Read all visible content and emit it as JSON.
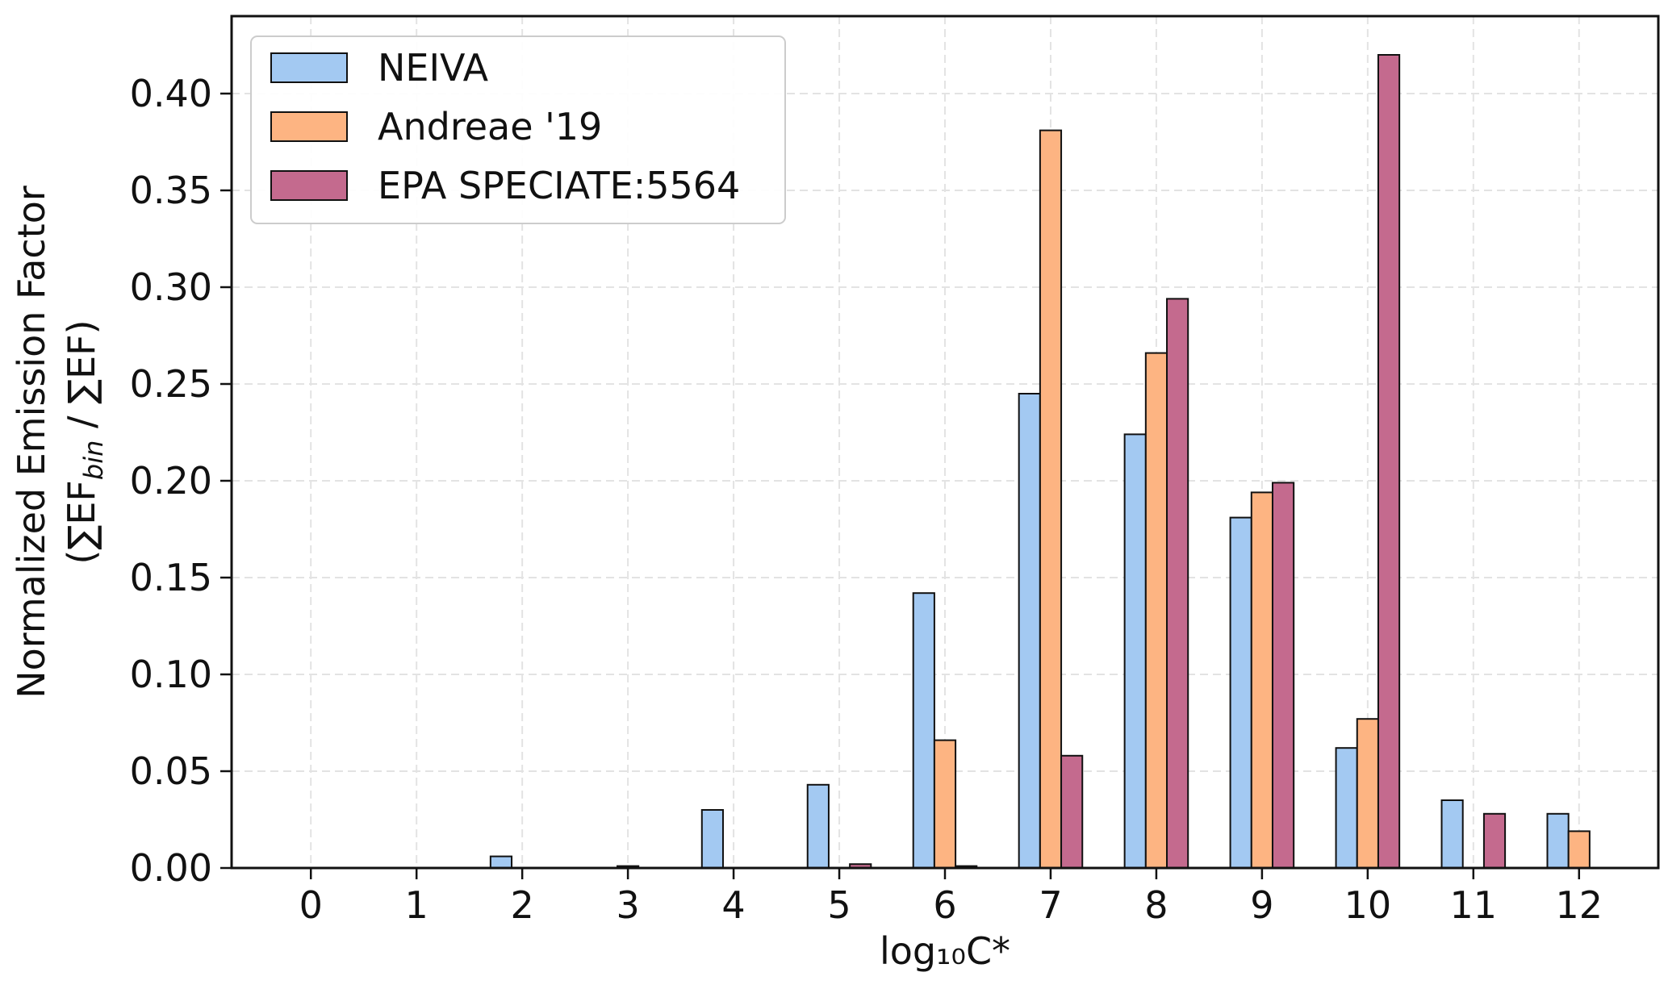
{
  "chart_data": {
    "type": "bar",
    "title": "",
    "xlabel": "log₁₀C*",
    "ylabel_line1": "Normalized Emission Factor",
    "ylabel_line2": "(∑EF",
    "ylabel_sub": "bin",
    "ylabel_line2_end": " / ∑EF)",
    "categories": [
      "0",
      "1",
      "2",
      "3",
      "4",
      "5",
      "6",
      "7",
      "8",
      "9",
      "10",
      "11",
      "12"
    ],
    "y_ticks": [
      "0.00",
      "0.05",
      "0.10",
      "0.15",
      "0.20",
      "0.25",
      "0.30",
      "0.35",
      "0.40"
    ],
    "ylim": [
      0,
      0.44
    ],
    "xlim": [
      -0.75,
      12.75
    ],
    "grid": true,
    "legend_position": "top-left",
    "series": [
      {
        "name": "NEIVA",
        "color": "#a3c9f2",
        "values": [
          0,
          0,
          0.006,
          0,
          0.03,
          0.043,
          0.142,
          0.245,
          0.224,
          0.181,
          0.062,
          0.035,
          0.028
        ]
      },
      {
        "name": "Andreae '19",
        "color": "#fdb482",
        "values": [
          0,
          0,
          0,
          0.001,
          0,
          0,
          0.066,
          0.381,
          0.266,
          0.194,
          0.077,
          0,
          0.019
        ]
      },
      {
        "name": "EPA SPECIATE:5564",
        "color": "#c46a8e",
        "values": [
          0,
          0,
          0,
          0,
          0,
          0.002,
          0.001,
          0.058,
          0.294,
          0.199,
          0.42,
          0.028,
          0
        ]
      }
    ]
  }
}
